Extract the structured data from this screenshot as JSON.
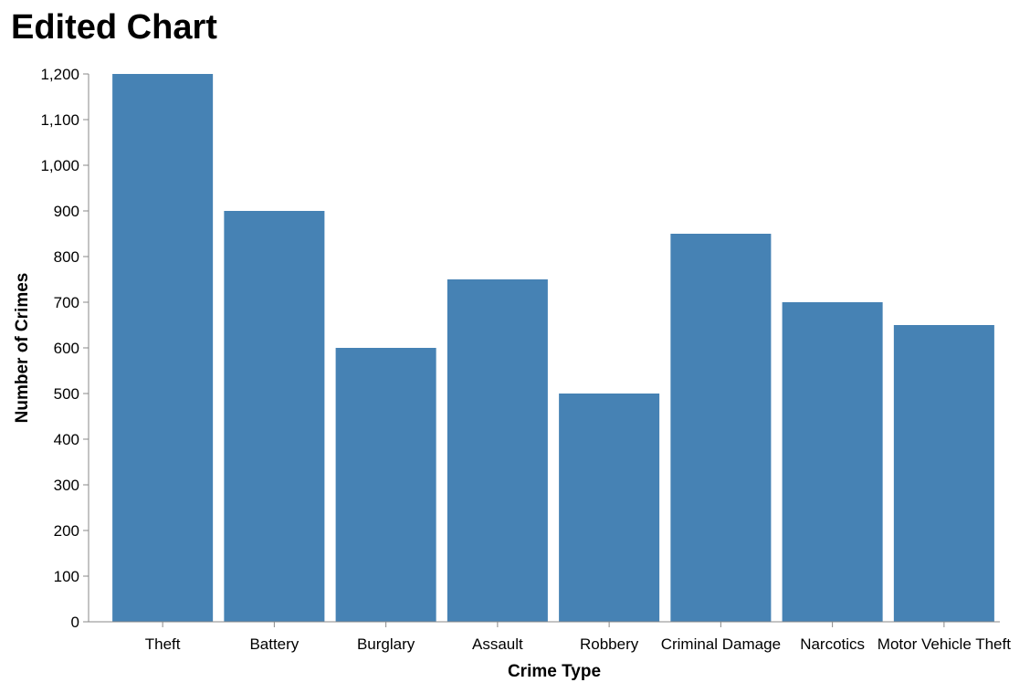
{
  "chart_data": {
    "type": "bar",
    "title": "Edited Chart",
    "xlabel": "Crime Type",
    "ylabel": "Number of Crimes",
    "categories": [
      "Theft",
      "Battery",
      "Burglary",
      "Assault",
      "Robbery",
      "Criminal Damage",
      "Narcotics",
      "Motor Vehicle Theft"
    ],
    "values": [
      1200,
      900,
      600,
      750,
      500,
      850,
      700,
      650
    ],
    "ylim": [
      0,
      1200
    ],
    "yticks": [
      0,
      100,
      200,
      300,
      400,
      500,
      600,
      700,
      800,
      900,
      1000,
      1100,
      1200
    ],
    "ytick_labels": [
      "0",
      "100",
      "200",
      "300",
      "400",
      "500",
      "600",
      "700",
      "800",
      "900",
      "1,000",
      "1,100",
      "1,200"
    ],
    "bar_color": "#4682b4",
    "grid": false,
    "legend": "none"
  }
}
